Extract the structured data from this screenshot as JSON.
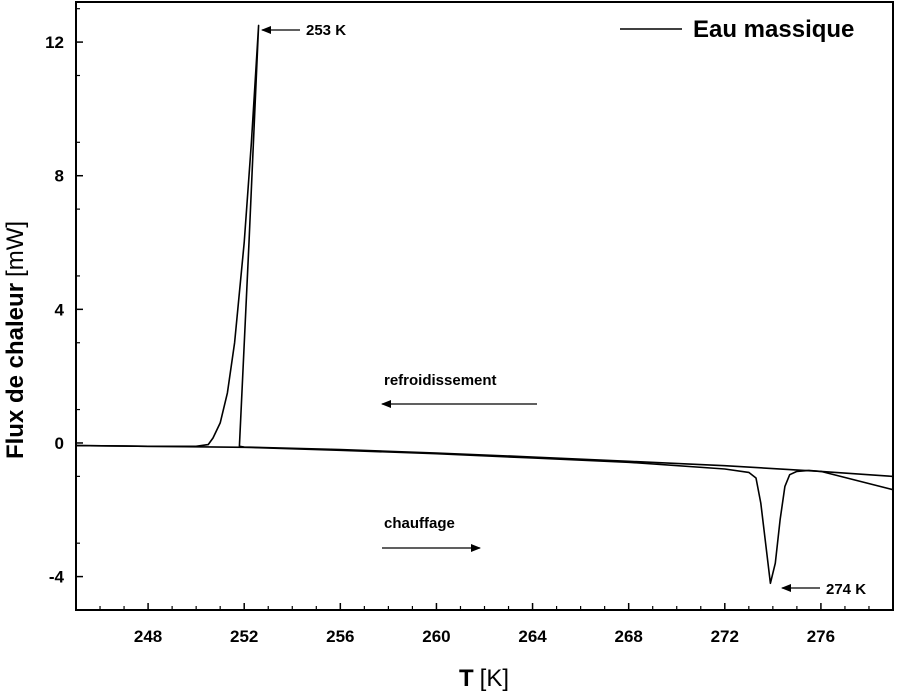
{
  "chart_data": {
    "type": "line",
    "title": "",
    "xlabel": {
      "bold": "T",
      "unit": "[K]"
    },
    "ylabel": {
      "bold": "Flux de chaleur",
      "unit": "[mW]"
    },
    "xlim": [
      245,
      279
    ],
    "ylim": [
      -5,
      13.2
    ],
    "xticks": [
      248,
      252,
      256,
      260,
      264,
      268,
      272,
      276
    ],
    "yticks": [
      -4,
      0,
      4,
      8,
      12
    ],
    "grid": false,
    "legend": {
      "position": "top-right",
      "entries": [
        "Eau massique"
      ]
    },
    "series": [
      {
        "name": "Eau massique",
        "segment": "refroidissement",
        "x": [
          279,
          276,
          272,
          268,
          264,
          260,
          256,
          252,
          251.8,
          252.2,
          252.6,
          252.3,
          252.0,
          251.6,
          251.3,
          251.0,
          250.7,
          250.5,
          250,
          248,
          245
        ],
        "y": [
          -1.0,
          -0.85,
          -0.68,
          -0.55,
          -0.42,
          -0.3,
          -0.2,
          -0.12,
          -0.1,
          6.0,
          12.5,
          9.0,
          6.0,
          3.0,
          1.5,
          0.6,
          0.15,
          -0.05,
          -0.1,
          -0.1,
          -0.08
        ]
      },
      {
        "name": "Eau massique",
        "segment": "chauffage",
        "x": [
          245,
          248,
          252,
          256,
          260,
          264,
          268,
          272,
          273,
          273.3,
          273.5,
          273.7,
          273.9,
          274.1,
          274.3,
          274.5,
          274.7,
          275.0,
          275.5,
          276,
          279
        ],
        "y": [
          -0.08,
          -0.1,
          -0.13,
          -0.22,
          -0.32,
          -0.45,
          -0.58,
          -0.78,
          -0.88,
          -1.05,
          -1.8,
          -3.0,
          -4.2,
          -3.6,
          -2.3,
          -1.3,
          -0.95,
          -0.85,
          -0.82,
          -0.85,
          -1.4
        ]
      }
    ],
    "annotations": [
      {
        "text": "253 K",
        "x": 252.6,
        "y": 12.5
      },
      {
        "text": "274 K",
        "x": 273.9,
        "y": -4.2
      },
      {
        "text": "refroidissement",
        "direction": "left"
      },
      {
        "text": "chauffage",
        "direction": "right"
      }
    ]
  }
}
